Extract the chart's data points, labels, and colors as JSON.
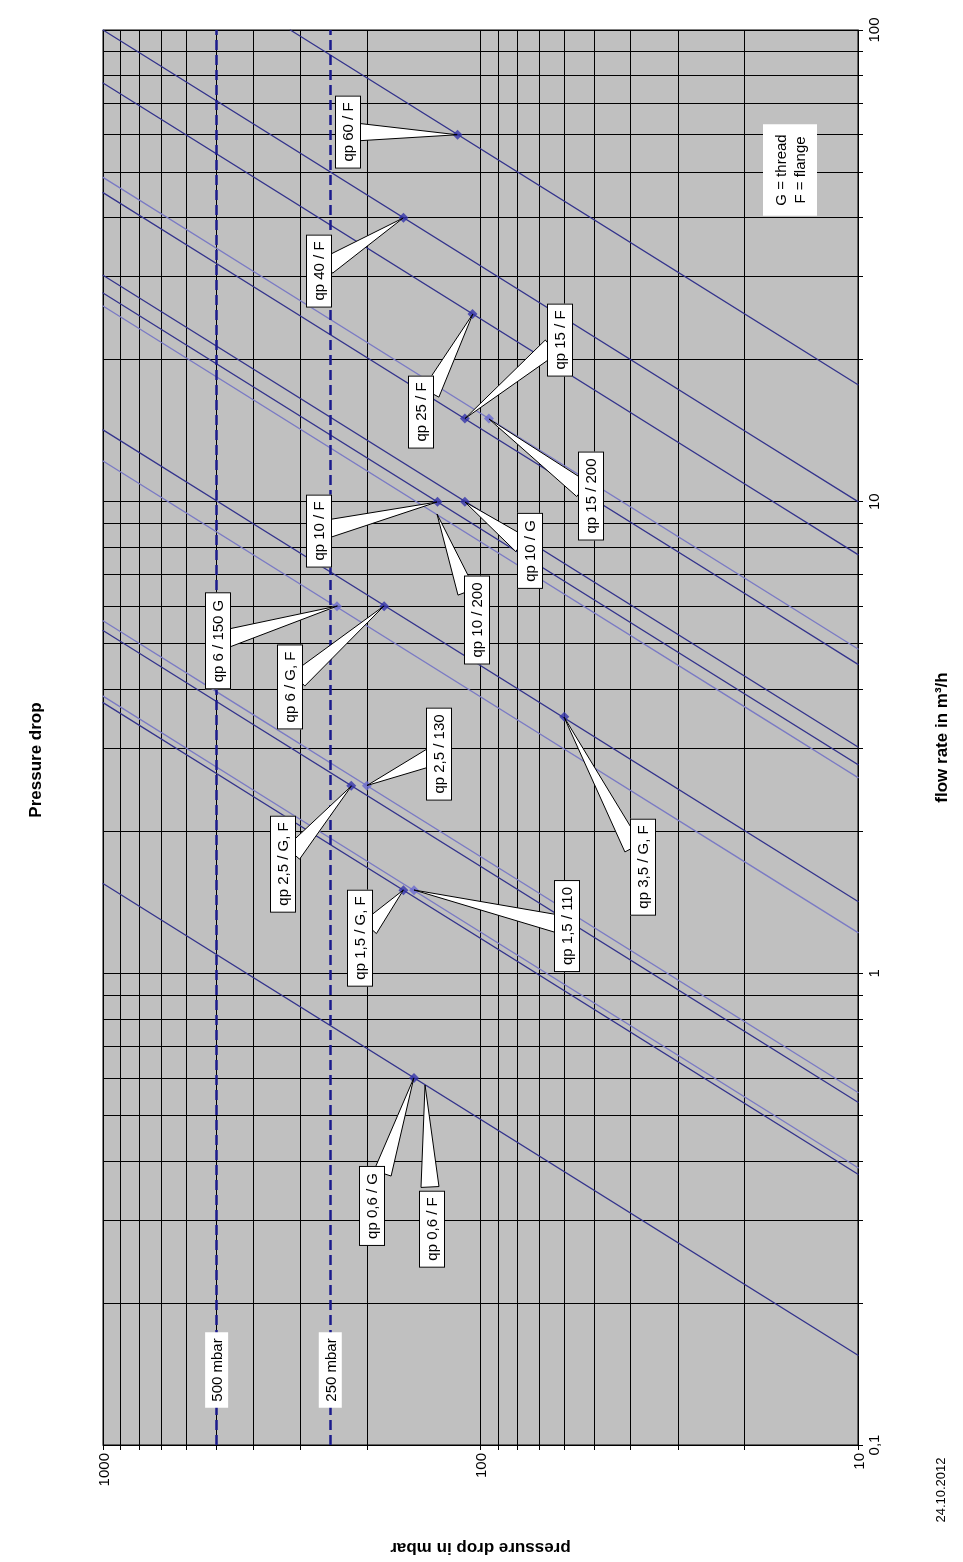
{
  "chart_data": {
    "type": "line",
    "title": "Pressure drop",
    "xlabel": "pressure drop in mbar",
    "ylabel": "flow rate in m³/h",
    "log": "xy",
    "grid": true,
    "marker": "none",
    "line_style": "solid",
    "xlim": [
      1000,
      10
    ],
    "ylim": [
      0.1,
      100
    ],
    "xticks": [
      1000,
      100,
      10
    ],
    "yticks": [
      {
        "value": 0.1,
        "label": "0,1"
      },
      1,
      10,
      100
    ],
    "series": [
      {
        "color": "#33338c",
        "x": [
          10,
          1000
        ],
        "values": [
          0.155,
          1.55
        ]
      },
      {
        "color": "#33338c",
        "x": [
          10,
          1000
        ],
        "values": [
          0.375,
          3.75
        ]
      },
      {
        "color": "#7a7ac4",
        "x": [
          10,
          1000
        ],
        "values": [
          0.387,
          3.87
        ]
      },
      {
        "color": "#33338c",
        "x": [
          10,
          1000
        ],
        "values": [
          0.533,
          5.33
        ]
      },
      {
        "color": "#7a7ac4",
        "x": [
          10,
          1000
        ],
        "values": [
          0.559,
          5.59
        ]
      },
      {
        "color": "#33338c",
        "x": [
          10,
          1000
        ],
        "values": [
          1.42,
          14.2
        ]
      },
      {
        "color": "#7a7ac4",
        "x": [
          10,
          1000
        ],
        "values": [
          1.22,
          12.2
        ]
      },
      {
        "color": "#33338c",
        "x": [
          10,
          1000
        ],
        "values": [
          2.77,
          27.7
        ]
      },
      {
        "color": "#33338c",
        "x": [
          10,
          1000
        ],
        "values": [
          3.02,
          30.2
        ]
      },
      {
        "color": "#7a7ac4",
        "x": [
          10,
          1000
        ],
        "values": [
          2.6,
          26
        ]
      },
      {
        "color": "#33338c",
        "x": [
          10,
          1000
        ],
        "values": [
          4.52,
          45.2
        ]
      },
      {
        "color": "#7a7ac4",
        "x": [
          10,
          1000
        ],
        "values": [
          4.87,
          48.7
        ]
      },
      {
        "color": "#33338c",
        "x": [
          10,
          1000
        ],
        "values": [
          7.72,
          77.2
        ]
      },
      {
        "color": "#33338c",
        "x": [
          10,
          1000
        ],
        "values": [
          10,
          100
        ]
      },
      {
        "color": "#33338c",
        "x": [
          10,
          319
        ],
        "values": [
          17.7,
          100
        ]
      },
      {
        "type": "scatter",
        "marker": "diamond",
        "color": "#3333aa",
        "x": [
          150,
          160,
          220,
          60,
          180,
          130,
          110,
          110,
          105,
          160,
          115
        ],
        "values": [
          0.6,
          1.5,
          2.5,
          3.5,
          6,
          10,
          10,
          15,
          25,
          40,
          60
        ]
      },
      {
        "type": "scatter",
        "marker": "diamond",
        "color": "#6a6ad0",
        "x": [
          150,
          200,
          240,
          95
        ],
        "values": [
          1.5,
          2.5,
          6,
          15
        ]
      }
    ],
    "ref_lines": [
      {
        "axis": "x",
        "value": 500,
        "label": "500 mbar",
        "color": "#1a1a8c",
        "line_style": "dashed"
      },
      {
        "axis": "x",
        "value": 250,
        "label": "250 mbar",
        "color": "#1a1a8c",
        "line_style": "dashed"
      }
    ],
    "annotations": [
      {
        "text": "qp 60 / F",
        "x": 115,
        "y": 60
      },
      "qp 40 / F",
      "qp 25 / F",
      "qp 15 / F",
      "qp 15 / 200",
      {
        "text": "qp 10 / F",
        "x": 130,
        "y": 10
      },
      {
        "text": "qp 10 / 200",
        "x": 130,
        "y": 9.4
      },
      "qp 10 / G",
      {
        "text": "qp 6 / 150 G",
        "x": 240,
        "y": 6
      },
      "qp 6 / G, F",
      "qp 2,5 / 130",
      "qp 2,5 / G, F",
      "qp 3,5 / G, F",
      {
        "text": "qp 1,5 / G, F",
        "x": 160,
        "y": 1.5
      },
      {
        "text": "qp 1,5 / 110",
        "x": 150,
        "y": 1.5
      },
      {
        "text": "qp 0,6 / G",
        "x": 150,
        "y": 0.6
      },
      {
        "text": "qp 0,6 / F",
        "x": 140,
        "y": 0.58
      },
      "G = thread\nF = flange",
      "24.10.2012"
    ]
  }
}
